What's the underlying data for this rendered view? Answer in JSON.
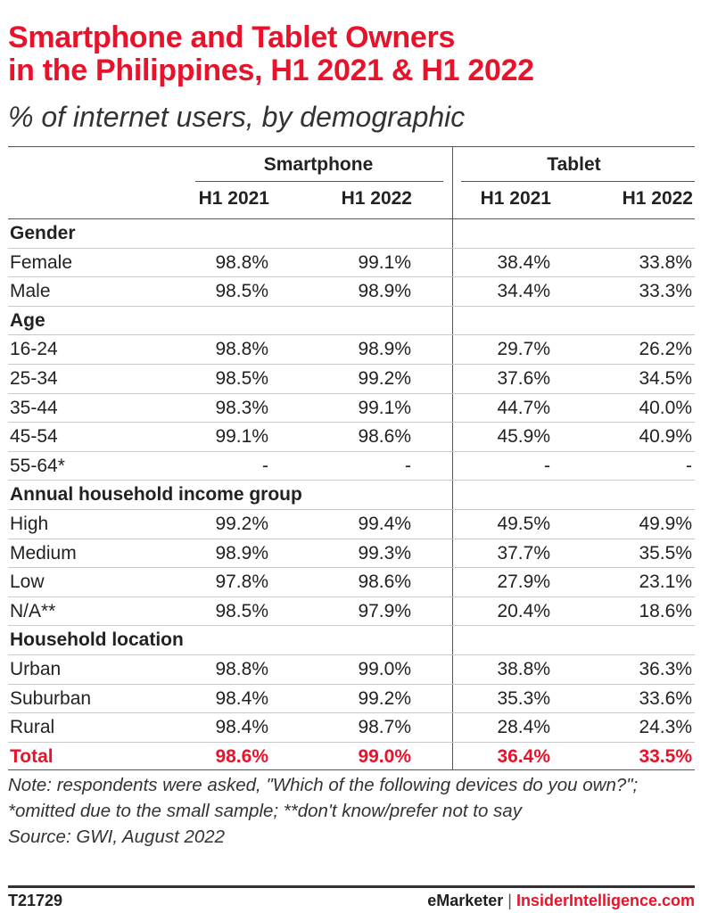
{
  "title_line1": "Smartphone and Tablet Owners",
  "title_line2": "in the Philippines, H1 2021 & H1 2022",
  "subtitle": "% of internet users, by demographic",
  "colors": {
    "accent": "#e8132b",
    "text": "#222222"
  },
  "chart_data": {
    "type": "table",
    "column_groups": [
      "Smartphone",
      "Tablet"
    ],
    "columns": [
      "H1 2021",
      "H1 2022",
      "H1 2021",
      "H1 2022"
    ],
    "rows": [
      {
        "label": "Gender",
        "section": true,
        "cells": [
          "",
          "",
          "",
          ""
        ]
      },
      {
        "label": "Female",
        "cells": [
          "98.8%",
          "99.1%",
          "38.4%",
          "33.8%"
        ]
      },
      {
        "label": "Male",
        "cells": [
          "98.5%",
          "98.9%",
          "34.4%",
          "33.3%"
        ]
      },
      {
        "label": "Age",
        "section": true,
        "cells": [
          "",
          "",
          "",
          ""
        ]
      },
      {
        "label": "16-24",
        "cells": [
          "98.8%",
          "98.9%",
          "29.7%",
          "26.2%"
        ]
      },
      {
        "label": "25-34",
        "cells": [
          "98.5%",
          "99.2%",
          "37.6%",
          "34.5%"
        ]
      },
      {
        "label": "35-44",
        "cells": [
          "98.3%",
          "99.1%",
          "44.7%",
          "40.0%"
        ]
      },
      {
        "label": "45-54",
        "cells": [
          "99.1%",
          "98.6%",
          "45.9%",
          "40.9%"
        ]
      },
      {
        "label": "55-64*",
        "cells": [
          "-",
          "-",
          "-",
          "-"
        ]
      },
      {
        "label": "Annual household income group",
        "section": true,
        "cells": [
          "",
          "",
          "",
          ""
        ]
      },
      {
        "label": "High",
        "cells": [
          "99.2%",
          "99.4%",
          "49.5%",
          "49.9%"
        ]
      },
      {
        "label": "Medium",
        "cells": [
          "98.9%",
          "99.3%",
          "37.7%",
          "35.5%"
        ]
      },
      {
        "label": "Low",
        "cells": [
          "97.8%",
          "98.6%",
          "27.9%",
          "23.1%"
        ]
      },
      {
        "label": "N/A**",
        "cells": [
          "98.5%",
          "97.9%",
          "20.4%",
          "18.6%"
        ]
      },
      {
        "label": "Household location",
        "section": true,
        "cells": [
          "",
          "",
          "",
          ""
        ]
      },
      {
        "label": "Urban",
        "cells": [
          "98.8%",
          "99.0%",
          "38.8%",
          "36.3%"
        ]
      },
      {
        "label": "Suburban",
        "cells": [
          "98.4%",
          "99.2%",
          "35.3%",
          "33.6%"
        ]
      },
      {
        "label": "Rural",
        "cells": [
          "98.4%",
          "98.7%",
          "28.4%",
          "24.3%"
        ]
      },
      {
        "label": "Total",
        "total": true,
        "cells": [
          "98.6%",
          "99.0%",
          "36.4%",
          "33.5%"
        ]
      }
    ]
  },
  "note": "Note: respondents were asked, \"Which of the following devices do you own?\"; *omitted due to the small sample; **don't know/prefer not to say",
  "source": "Source: GWI, August 2022",
  "footer": {
    "id": "T21729",
    "brand1": "eMarketer",
    "separator": "|",
    "brand2": "InsiderIntelligence.com"
  }
}
